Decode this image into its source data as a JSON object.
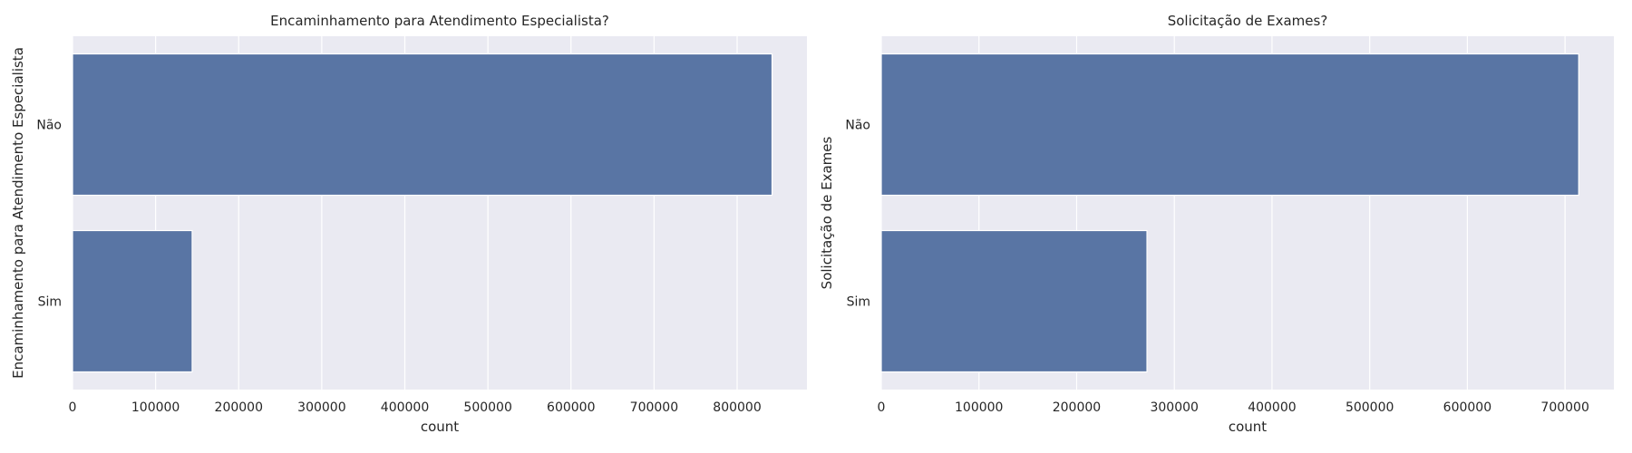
{
  "chart_data": [
    {
      "type": "bar",
      "orientation": "horizontal",
      "title": "Encaminhamento para Atendimento Especialista?",
      "xlabel": "count",
      "ylabel": "Encaminhamento para Atendimento Especialista",
      "categories": [
        "Não",
        "Sim"
      ],
      "values": [
        842000,
        144000
      ],
      "xlim": [
        0,
        884000
      ],
      "xticks": [
        0,
        100000,
        200000,
        300000,
        400000,
        500000,
        600000,
        700000,
        800000
      ],
      "xtick_labels": [
        "0",
        "100000",
        "200000",
        "300000",
        "400000",
        "500000",
        "600000",
        "700000",
        "800000"
      ],
      "grid": true
    },
    {
      "type": "bar",
      "orientation": "horizontal",
      "title": "Solicitação de Exames?",
      "xlabel": "count",
      "ylabel": "Solicitação de Exames",
      "categories": [
        "Não",
        "Sim"
      ],
      "values": [
        714000,
        272000
      ],
      "xlim": [
        0,
        750000
      ],
      "xticks": [
        0,
        100000,
        200000,
        300000,
        400000,
        500000,
        600000,
        700000
      ],
      "xtick_labels": [
        "0",
        "100000",
        "200000",
        "300000",
        "400000",
        "500000",
        "600000",
        "700000"
      ],
      "grid": true
    }
  ],
  "colors": {
    "bar": "#5975a4",
    "plot_background": "#eaeaf2",
    "grid": "#ffffff",
    "text": "#262626"
  }
}
